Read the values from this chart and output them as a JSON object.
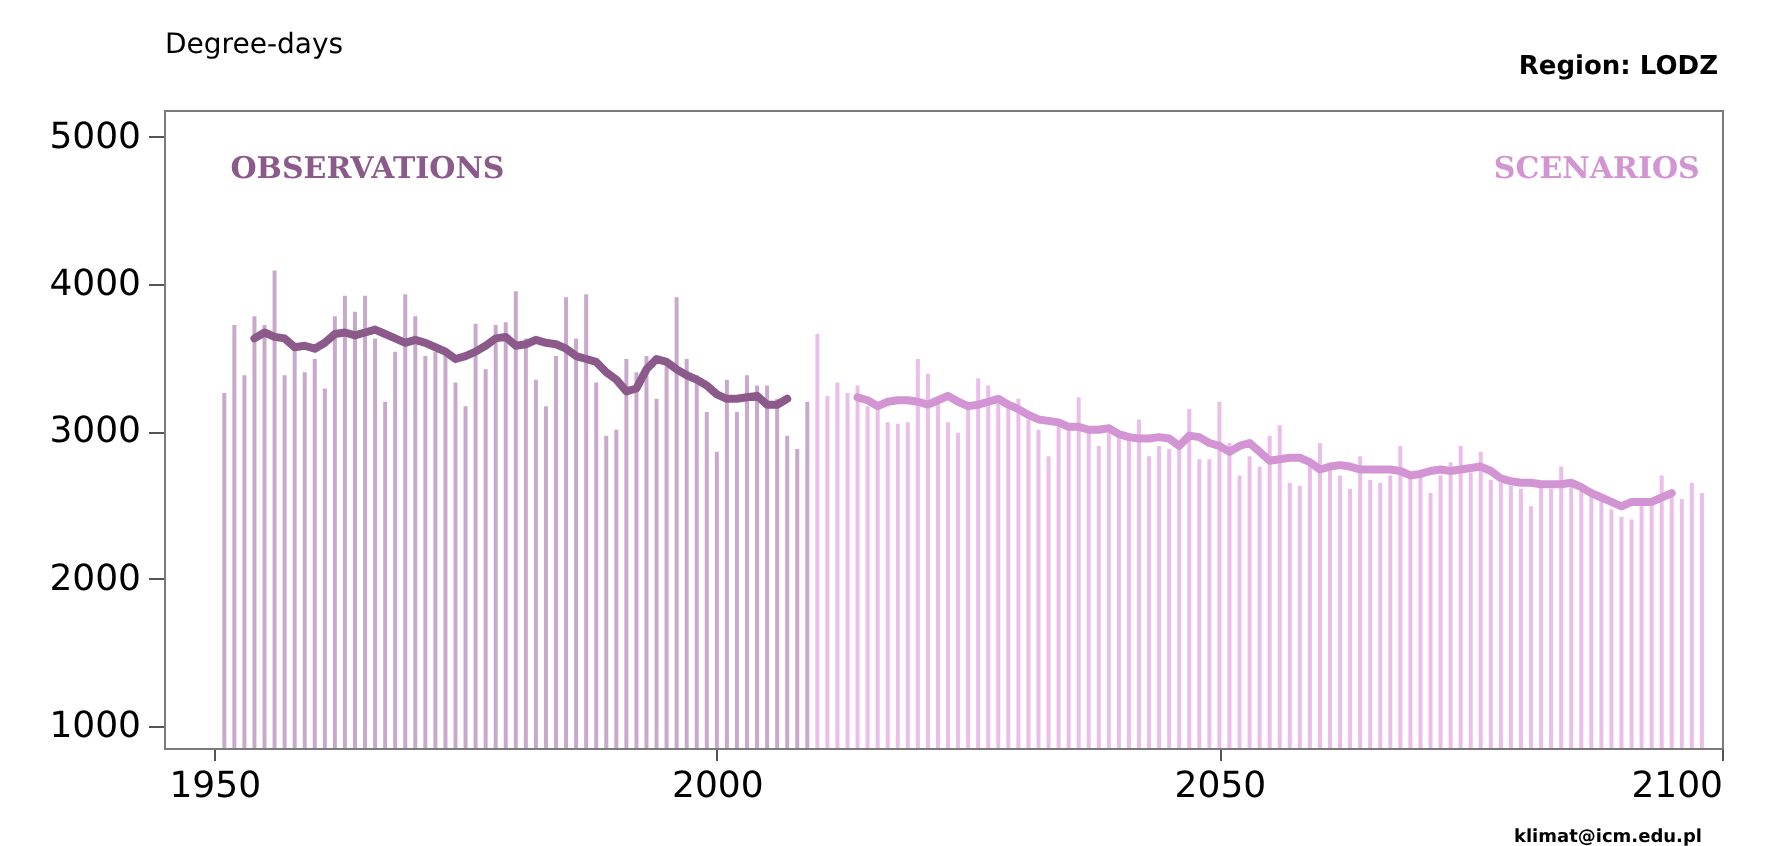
{
  "chart_data": {
    "type": "bar",
    "title": "Region:  LODZ",
    "ylabel": "Degree-days",
    "annotations": [
      "klimat@icm.edu.pl"
    ],
    "xlim": [
      1945,
      2100
    ],
    "xticks": [
      1950,
      2000,
      2050,
      2100
    ],
    "ylim": [
      850,
      5180
    ],
    "yticks": [
      1000,
      2000,
      3000,
      4000,
      5000
    ],
    "series": [
      {
        "color": "#c9a9cb",
        "x": [
          1951,
          1952,
          1953,
          1954,
          1955,
          1956,
          1957,
          1958,
          1959,
          1960,
          1961,
          1962,
          1963,
          1964,
          1965,
          1966,
          1967,
          1968,
          1969,
          1970,
          1971,
          1972,
          1973,
          1974,
          1975,
          1976,
          1977,
          1978,
          1979,
          1980,
          1981,
          1982,
          1983,
          1984,
          1985,
          1986,
          1987,
          1988,
          1989,
          1990,
          1991,
          1992,
          1993,
          1994,
          1995,
          1996,
          1997,
          1998,
          1999,
          2000,
          2001,
          2002,
          2003,
          2004,
          2005,
          2006,
          2007,
          2008,
          2009
        ],
        "values": [
          3260,
          3720,
          3380,
          3780,
          3720,
          4090,
          3380,
          3600,
          3400,
          3490,
          3290,
          3780,
          3920,
          3810,
          3920,
          3630,
          3200,
          3540,
          3930,
          3780,
          3510,
          3540,
          3560,
          3330,
          3170,
          3730,
          3420,
          3720,
          3740,
          3950,
          3630,
          3350,
          3170,
          3510,
          3910,
          3630,
          3930,
          3330,
          2970,
          3010,
          3490,
          3400,
          3510,
          3220,
          3440,
          3910,
          3490,
          3380,
          3130,
          2860,
          3350,
          3130,
          3380,
          3310,
          3310,
          3220,
          2970,
          2880,
          3200
        ]
      },
      {
        "color": "#ebbeea",
        "x": [
          2010,
          2011,
          2012,
          2013,
          2014,
          2015,
          2016,
          2017,
          2018,
          2019,
          2020,
          2021,
          2022,
          2023,
          2024,
          2025,
          2026,
          2027,
          2028,
          2029,
          2030,
          2031,
          2032,
          2033,
          2034,
          2035,
          2036,
          2037,
          2038,
          2039,
          2040,
          2041,
          2042,
          2043,
          2044,
          2045,
          2046,
          2047,
          2048,
          2049,
          2050,
          2051,
          2052,
          2053,
          2054,
          2055,
          2056,
          2057,
          2058,
          2059,
          2060,
          2061,
          2062,
          2063,
          2064,
          2065,
          2066,
          2067,
          2068,
          2069,
          2070,
          2071,
          2072,
          2073,
          2074,
          2075,
          2076,
          2077,
          2078,
          2079,
          2080,
          2081,
          2082,
          2083,
          2084,
          2085,
          2086,
          2087,
          2088,
          2089,
          2090,
          2091,
          2092,
          2093,
          2094,
          2095,
          2096,
          2097,
          2098
        ],
        "values": [
          3660,
          3240,
          3330,
          3260,
          3310,
          3170,
          3150,
          3060,
          3050,
          3060,
          3490,
          3390,
          3200,
          3060,
          2990,
          3170,
          3360,
          3310,
          3200,
          3170,
          3220,
          3080,
          3010,
          2830,
          3040,
          3010,
          3230,
          2990,
          2900,
          2990,
          2970,
          2950,
          3080,
          2830,
          2900,
          2880,
          2920,
          3150,
          2810,
          2810,
          3200,
          2920,
          2700,
          2830,
          2760,
          2970,
          3040,
          2650,
          2630,
          2790,
          2920,
          2740,
          2700,
          2610,
          2830,
          2670,
          2650,
          2700,
          2900,
          2700,
          2720,
          2580,
          2700,
          2790,
          2900,
          2720,
          2860,
          2670,
          2650,
          2630,
          2610,
          2490,
          2630,
          2610,
          2760,
          2670,
          2610,
          2610,
          2560,
          2470,
          2420,
          2400,
          2520,
          2520,
          2700,
          2580,
          2540,
          2650,
          2580
        ]
      },
      {
        "type": "line",
        "name": "OBSERVATIONS",
        "color": "#8b5a8b",
        "x": [
          1954,
          1955,
          1956,
          1957,
          1958,
          1959,
          1960,
          1961,
          1962,
          1963,
          1964,
          1965,
          1966,
          1967,
          1968,
          1969,
          1970,
          1971,
          1972,
          1973,
          1974,
          1975,
          1976,
          1977,
          1978,
          1979,
          1980,
          1981,
          1982,
          1983,
          1984,
          1985,
          1986,
          1987,
          1988,
          1989,
          1990,
          1991,
          1992,
          1993,
          1994,
          1995,
          1996,
          1997,
          1998,
          1999,
          2000,
          2001,
          2002,
          2003,
          2004,
          2005,
          2006,
          2007
        ],
        "values": [
          3630,
          3670,
          3640,
          3630,
          3570,
          3580,
          3560,
          3600,
          3660,
          3670,
          3650,
          3670,
          3690,
          3660,
          3630,
          3600,
          3620,
          3600,
          3570,
          3540,
          3490,
          3510,
          3540,
          3580,
          3630,
          3640,
          3580,
          3590,
          3620,
          3600,
          3590,
          3560,
          3510,
          3490,
          3470,
          3400,
          3350,
          3270,
          3290,
          3420,
          3490,
          3470,
          3420,
          3380,
          3350,
          3310,
          3250,
          3220,
          3220,
          3230,
          3240,
          3180,
          3180,
          3220
        ]
      },
      {
        "type": "line",
        "name": "SCENARIOS",
        "color": "#d394d3",
        "x": [
          2014,
          2015,
          2016,
          2017,
          2018,
          2019,
          2020,
          2021,
          2022,
          2023,
          2024,
          2025,
          2026,
          2027,
          2028,
          2029,
          2030,
          2031,
          2032,
          2033,
          2034,
          2035,
          2036,
          2037,
          2038,
          2039,
          2040,
          2041,
          2042,
          2043,
          2044,
          2045,
          2046,
          2047,
          2048,
          2049,
          2050,
          2051,
          2052,
          2053,
          2054,
          2055,
          2056,
          2057,
          2058,
          2059,
          2060,
          2061,
          2062,
          2063,
          2064,
          2065,
          2066,
          2067,
          2068,
          2069,
          2070,
          2071,
          2072,
          2073,
          2074,
          2075,
          2076,
          2077,
          2078,
          2079,
          2080,
          2081,
          2082,
          2083,
          2084,
          2085,
          2086,
          2087,
          2088,
          2089,
          2090,
          2091,
          2092,
          2093,
          2094,
          2095
        ],
        "values": [
          3230,
          3210,
          3170,
          3200,
          3210,
          3210,
          3200,
          3180,
          3210,
          3240,
          3200,
          3170,
          3180,
          3200,
          3220,
          3180,
          3150,
          3110,
          3080,
          3070,
          3060,
          3030,
          3030,
          3010,
          3010,
          3020,
          2980,
          2960,
          2950,
          2950,
          2960,
          2950,
          2900,
          2970,
          2960,
          2920,
          2900,
          2860,
          2900,
          2920,
          2860,
          2800,
          2810,
          2820,
          2820,
          2790,
          2740,
          2760,
          2770,
          2760,
          2740,
          2740,
          2740,
          2740,
          2730,
          2700,
          2710,
          2730,
          2740,
          2730,
          2740,
          2750,
          2760,
          2730,
          2680,
          2660,
          2650,
          2650,
          2640,
          2640,
          2640,
          2650,
          2620,
          2580,
          2550,
          2520,
          2490,
          2520,
          2520,
          2520,
          2550,
          2580
        ]
      }
    ]
  }
}
